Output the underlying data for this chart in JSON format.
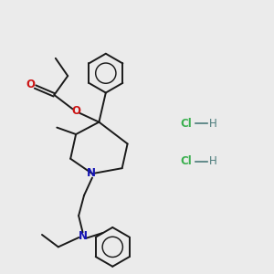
{
  "background_color": "#ebebeb",
  "bond_color": "#1a1a1a",
  "nitrogen_color": "#1414b4",
  "oxygen_color": "#cc1414",
  "chlorine_color": "#3cb050",
  "hydrogen_color": "#4a7a7a",
  "lw": 1.4,
  "ring_r": 0.72,
  "hcl1": [
    6.8,
    5.5
  ],
  "hcl2": [
    6.8,
    4.1
  ]
}
